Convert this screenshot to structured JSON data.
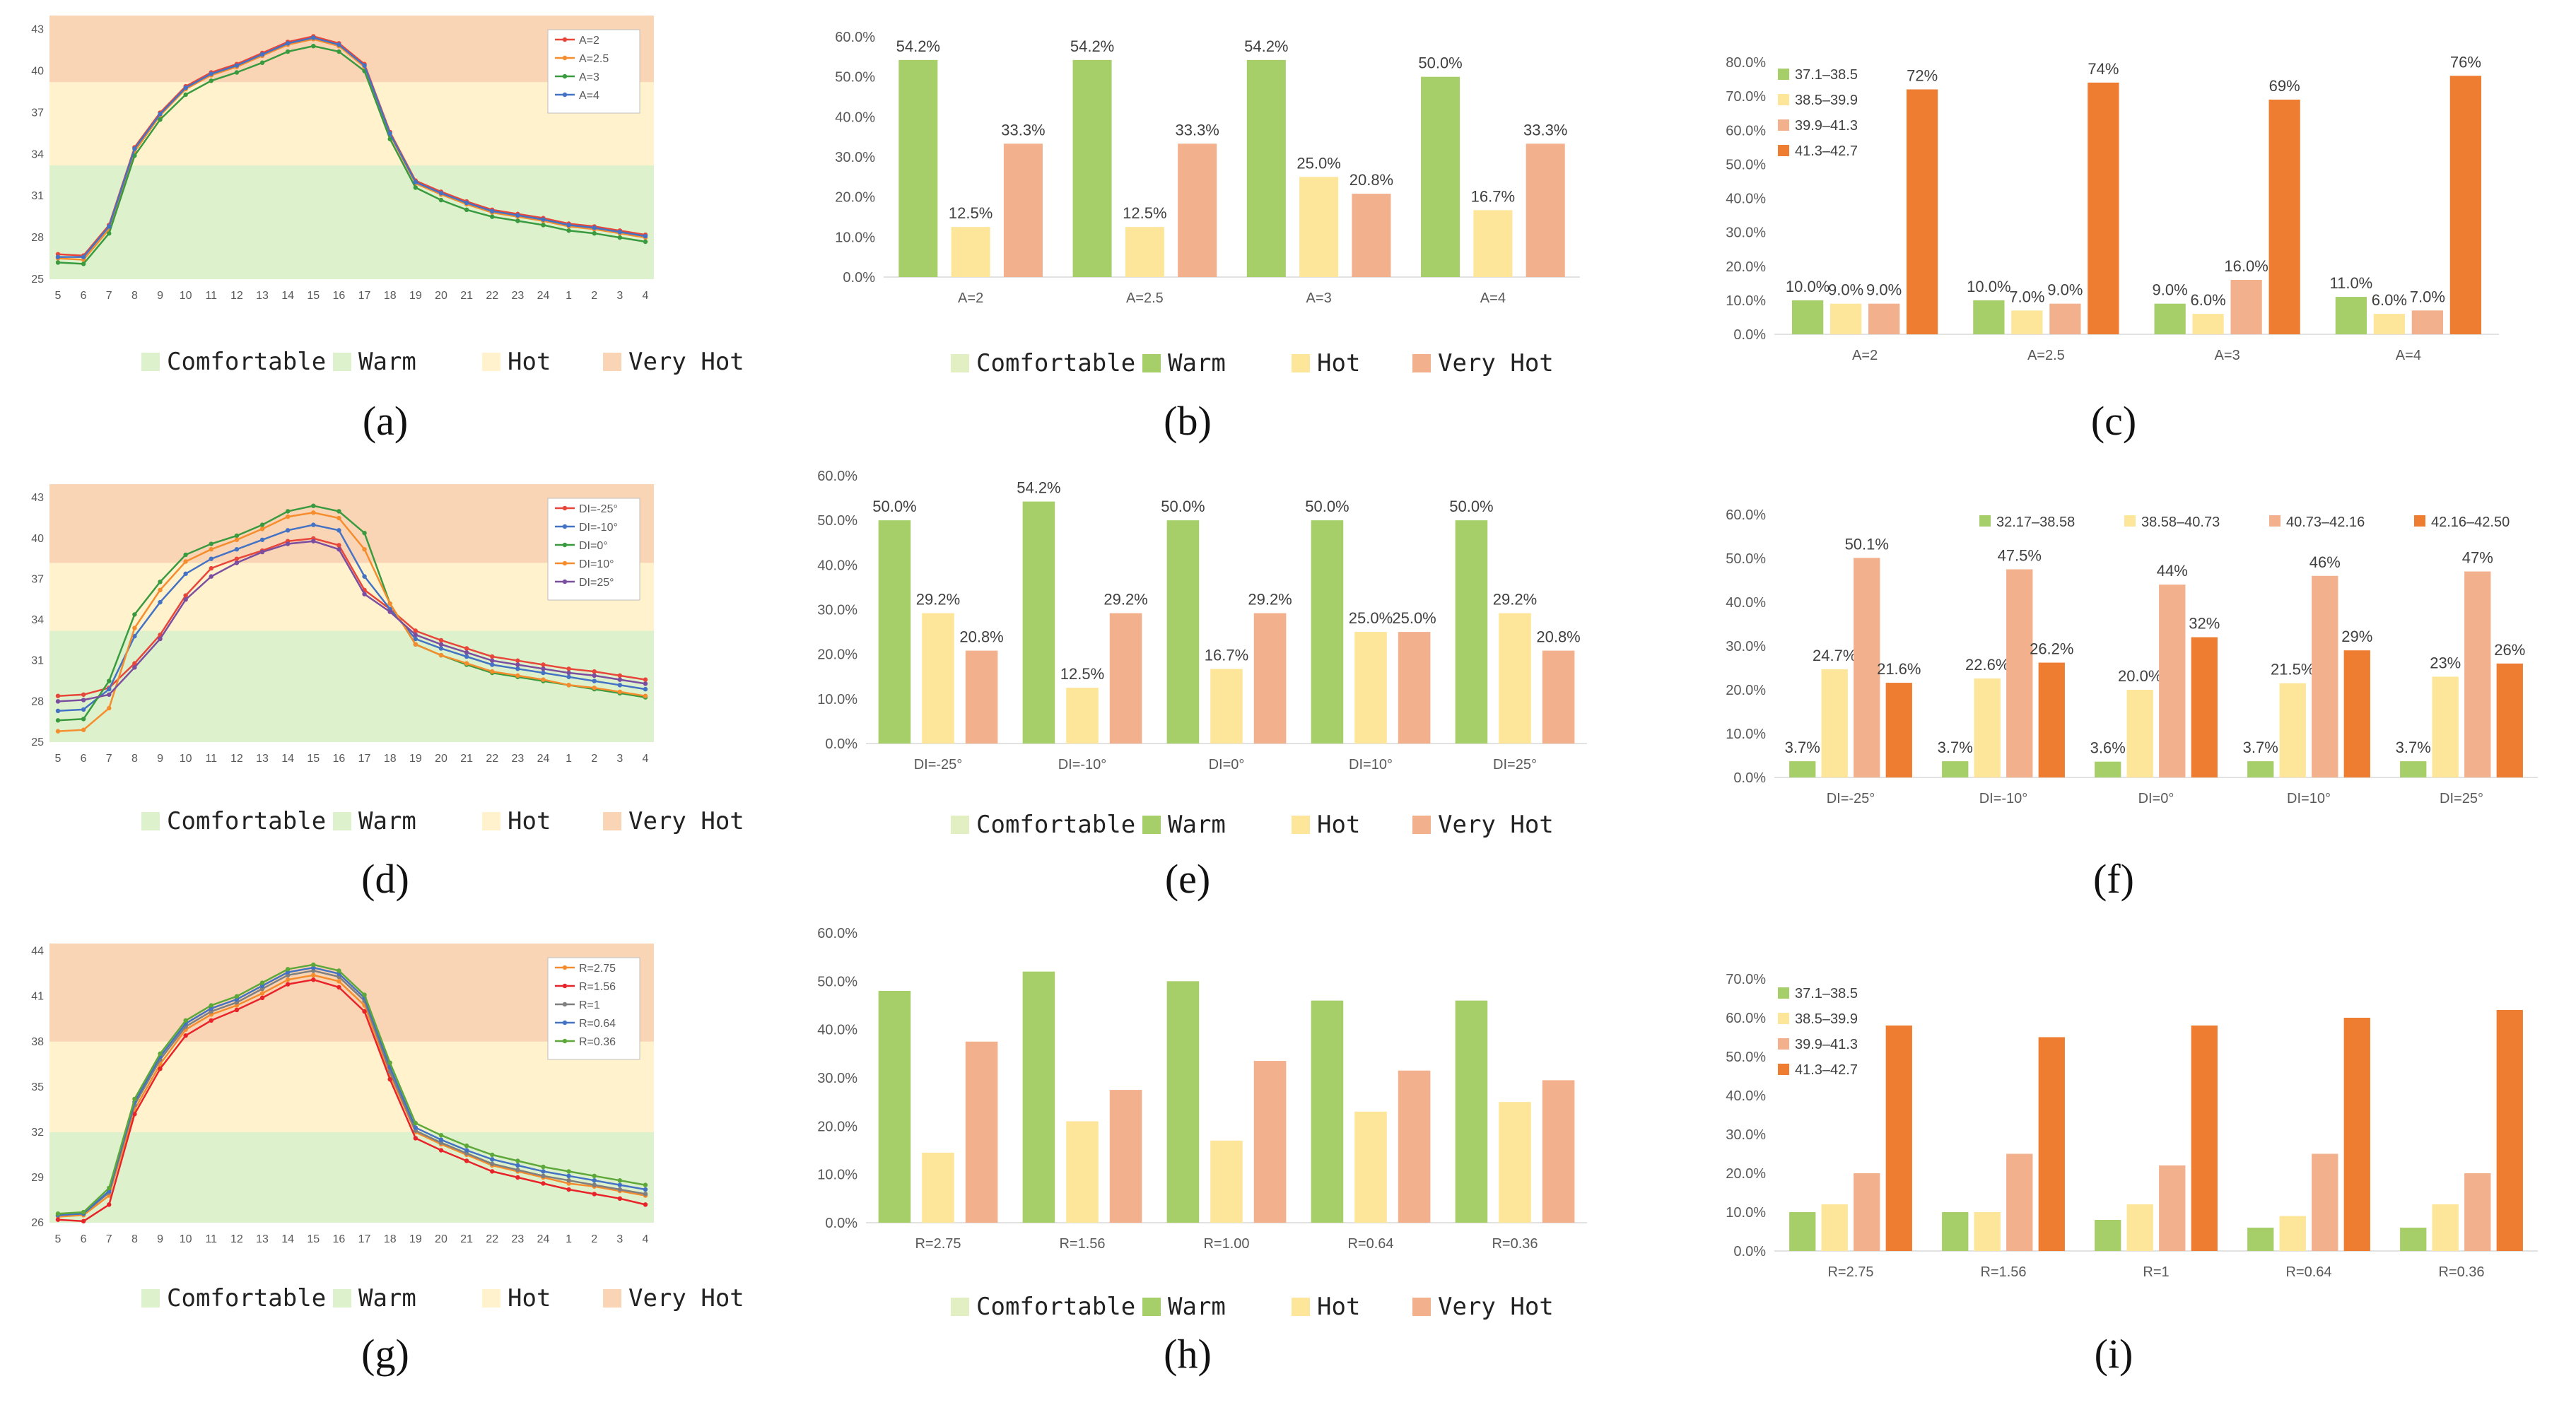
{
  "legend": [
    "Comfortable",
    "Warm",
    "Hot",
    "Very Hot"
  ],
  "colors": {
    "comfortable": "#e1efc2",
    "warm": "#a6cf69",
    "hot": "#fde69a",
    "very_hot": "#f3b08c",
    "bin4": "#ee7d31",
    "zone_comfortable": "#ddf2cc",
    "zone_warm": "#fff2cc",
    "zone_hot": "#fce4ca",
    "zone_very_hot": "#f9d5b6"
  },
  "chart_data": [
    {
      "id": "a",
      "type": "line",
      "caption": "(a)",
      "x": [
        "5",
        "6",
        "7",
        "8",
        "9",
        "10",
        "11",
        "12",
        "13",
        "14",
        "15",
        "16",
        "17",
        "18",
        "19",
        "20",
        "21",
        "22",
        "23",
        "24",
        "1",
        "2",
        "3",
        "4"
      ],
      "yticks": [
        "25",
        "28",
        "31",
        "34",
        "37",
        "40",
        "43"
      ],
      "ylim": [
        25,
        44
      ],
      "zones": [
        [
          25,
          33.2
        ],
        [
          33.2,
          39.2
        ],
        [
          39.2,
          44
        ]
      ],
      "series": [
        {
          "name": "A=2",
          "color": "#e8463a",
          "values": [
            26.8,
            26.7,
            28.9,
            34.5,
            37.0,
            38.9,
            39.9,
            40.5,
            41.3,
            42.1,
            42.5,
            42.0,
            40.5,
            35.6,
            32.1,
            31.3,
            30.6,
            30.0,
            29.7,
            29.4,
            29.0,
            28.8,
            28.5,
            28.2
          ]
        },
        {
          "name": "A=2.5",
          "color": "#f58d2f",
          "values": [
            26.5,
            26.4,
            28.6,
            34.2,
            36.8,
            38.7,
            39.7,
            40.3,
            41.1,
            41.9,
            42.3,
            41.8,
            40.3,
            35.4,
            31.9,
            31.1,
            30.4,
            29.8,
            29.5,
            29.2,
            28.8,
            28.6,
            28.3,
            28.0
          ]
        },
        {
          "name": "A=3",
          "color": "#3a9a3f",
          "values": [
            26.2,
            26.1,
            28.3,
            33.9,
            36.5,
            38.3,
            39.3,
            39.9,
            40.6,
            41.4,
            41.8,
            41.4,
            40.0,
            35.1,
            31.6,
            30.7,
            30.0,
            29.5,
            29.2,
            28.9,
            28.5,
            28.3,
            28.0,
            27.7
          ]
        },
        {
          "name": "A=4",
          "color": "#4472c4",
          "values": [
            26.6,
            26.6,
            28.8,
            34.4,
            36.9,
            38.8,
            39.8,
            40.4,
            41.2,
            42.0,
            42.4,
            41.9,
            40.4,
            35.5,
            32.0,
            31.2,
            30.5,
            29.9,
            29.6,
            29.3,
            28.9,
            28.7,
            28.4,
            28.1
          ]
        }
      ]
    },
    {
      "id": "b",
      "type": "bar",
      "caption": "(b)",
      "categories": [
        "A=2",
        "A=2.5",
        "A=3",
        "A=4"
      ],
      "yticks": [
        "0.0%",
        "10.0%",
        "20.0%",
        "30.0%",
        "40.0%",
        "50.0%",
        "60.0%"
      ],
      "ylim": [
        0,
        60
      ],
      "series": [
        {
          "name": "Warm",
          "values": [
            54.2,
            54.2,
            54.2,
            50.0
          ],
          "labels": [
            "54.2%",
            "54.2%",
            "54.2%",
            "50.0%"
          ]
        },
        {
          "name": "Hot",
          "values": [
            12.5,
            12.5,
            25.0,
            16.7
          ],
          "labels": [
            "12.5%",
            "12.5%",
            "25.0%",
            "16.7%"
          ]
        },
        {
          "name": "Very Hot",
          "values": [
            33.3,
            33.3,
            20.8,
            33.3
          ],
          "labels": [
            "33.3%",
            "33.3%",
            "20.8%",
            "33.3%"
          ]
        }
      ]
    },
    {
      "id": "c",
      "type": "bar",
      "caption": "(c)",
      "categories": [
        "A=2",
        "A=2.5",
        "A=3",
        "A=4"
      ],
      "yticks": [
        "0.0%",
        "10.0%",
        "20.0%",
        "30.0%",
        "40.0%",
        "50.0%",
        "60.0%",
        "70.0%",
        "80.0%"
      ],
      "ylim": [
        0,
        80
      ],
      "legend": [
        "37.1–38.5",
        "38.5–39.9",
        "39.9–41.3",
        "41.3–42.7"
      ],
      "series": [
        {
          "name": "37.1–38.5",
          "values": [
            10,
            10,
            9,
            11
          ],
          "labels": [
            "10.0%",
            "10.0%",
            "9.0%",
            "11.0%"
          ]
        },
        {
          "name": "38.5–39.9",
          "values": [
            9,
            7,
            6,
            6
          ],
          "labels": [
            "9.0%",
            "7.0%",
            "6.0%",
            "6.0%"
          ]
        },
        {
          "name": "39.9–41.3",
          "values": [
            9,
            9,
            16,
            7
          ],
          "labels": [
            "9.0%",
            "9.0%",
            "16.0%",
            "7.0%"
          ]
        },
        {
          "name": "41.3–42.7",
          "values": [
            72,
            74,
            69,
            76
          ],
          "labels": [
            "72%",
            "74%",
            "69%",
            "76%"
          ]
        }
      ]
    },
    {
      "id": "d",
      "type": "line",
      "caption": "(d)",
      "x": [
        "5",
        "6",
        "7",
        "8",
        "9",
        "10",
        "11",
        "12",
        "13",
        "14",
        "15",
        "16",
        "17",
        "18",
        "19",
        "20",
        "21",
        "22",
        "23",
        "24",
        "1",
        "2",
        "3",
        "4"
      ],
      "yticks": [
        "25",
        "28",
        "31",
        "34",
        "37",
        "40",
        "43"
      ],
      "ylim": [
        25,
        44
      ],
      "zones": [
        [
          25,
          33.2
        ],
        [
          33.2,
          38.2
        ],
        [
          38.2,
          44
        ]
      ],
      "series": [
        {
          "name": "DI=-25°",
          "color": "#e8463a",
          "values": [
            28.4,
            28.5,
            29.0,
            30.8,
            32.9,
            35.8,
            37.8,
            38.5,
            39.1,
            39.8,
            40.0,
            39.5,
            36.2,
            34.8,
            33.2,
            32.5,
            31.9,
            31.3,
            31.0,
            30.7,
            30.4,
            30.2,
            29.9,
            29.6
          ]
        },
        {
          "name": "DI=-10°",
          "color": "#4472c4",
          "values": [
            27.3,
            27.4,
            28.9,
            32.8,
            35.3,
            37.4,
            38.5,
            39.2,
            39.9,
            40.6,
            41.0,
            40.6,
            37.2,
            34.8,
            32.6,
            31.9,
            31.3,
            30.7,
            30.4,
            30.1,
            29.8,
            29.5,
            29.2,
            28.9
          ]
        },
        {
          "name": "DI=0°",
          "color": "#3a9a3f",
          "values": [
            26.6,
            26.7,
            29.5,
            34.4,
            36.8,
            38.8,
            39.6,
            40.2,
            41.0,
            42.0,
            42.4,
            42.0,
            40.4,
            35.2,
            32.2,
            31.4,
            30.7,
            30.1,
            29.8,
            29.5,
            29.2,
            28.9,
            28.6,
            28.3
          ]
        },
        {
          "name": "DI=10°",
          "color": "#f58d2f",
          "values": [
            25.8,
            25.9,
            27.5,
            33.4,
            36.2,
            38.3,
            39.2,
            39.9,
            40.7,
            41.6,
            41.9,
            41.5,
            39.2,
            35.2,
            32.2,
            31.4,
            30.8,
            30.2,
            29.9,
            29.6,
            29.2,
            29.0,
            28.7,
            28.4
          ]
        },
        {
          "name": "DI=25°",
          "color": "#7b4ea0",
          "values": [
            28.0,
            28.1,
            28.5,
            30.5,
            32.6,
            35.5,
            37.2,
            38.2,
            39.0,
            39.6,
            39.8,
            39.2,
            35.9,
            34.6,
            32.9,
            32.2,
            31.6,
            31.0,
            30.7,
            30.4,
            30.1,
            29.9,
            29.6,
            29.3
          ]
        }
      ]
    },
    {
      "id": "e",
      "type": "bar",
      "caption": "(e)",
      "categories": [
        "DI=-25°",
        "DI=-10°",
        "DI=0°",
        "DI=10°",
        "DI=25°"
      ],
      "yticks": [
        "0.0%",
        "10.0%",
        "20.0%",
        "30.0%",
        "40.0%",
        "50.0%",
        "60.0%"
      ],
      "ylim": [
        0,
        60
      ],
      "series": [
        {
          "name": "Warm",
          "values": [
            50.0,
            54.2,
            50.0,
            50.0,
            50.0
          ],
          "labels": [
            "50.0%",
            "54.2%",
            "50.0%",
            "50.0%",
            "50.0%"
          ]
        },
        {
          "name": "Hot",
          "values": [
            29.2,
            12.5,
            16.7,
            25.0,
            29.2
          ],
          "labels": [
            "29.2%",
            "12.5%",
            "16.7%",
            "25.0%",
            "29.2%"
          ]
        },
        {
          "name": "Very Hot",
          "values": [
            20.8,
            29.2,
            29.2,
            25.0,
            20.8
          ],
          "labels": [
            "20.8%",
            "29.2%",
            "29.2%",
            "25.0%",
            "20.8%"
          ]
        }
      ]
    },
    {
      "id": "f",
      "type": "bar",
      "caption": "(f)",
      "categories": [
        "DI=-25°",
        "DI=-10°",
        "DI=0°",
        "DI=10°",
        "DI=25°"
      ],
      "yticks": [
        "0.0%",
        "10.0%",
        "20.0%",
        "30.0%",
        "40.0%",
        "50.0%",
        "60.0%"
      ],
      "ylim": [
        0,
        60
      ],
      "legend": [
        "32.17–38.58",
        "38.58–40.73",
        "40.73–42.16",
        "42.16–42.50"
      ],
      "series": [
        {
          "name": "32.17–38.58",
          "values": [
            3.7,
            3.7,
            3.6,
            3.7,
            3.7
          ],
          "labels": [
            "3.7%",
            "3.7%",
            "3.6%",
            "3.7%",
            "3.7%"
          ]
        },
        {
          "name": "38.58–40.73",
          "values": [
            24.7,
            22.6,
            20.0,
            21.5,
            23.0
          ],
          "labels": [
            "24.7%",
            "22.6%",
            "20.0%",
            "21.5%",
            "23%"
          ]
        },
        {
          "name": "40.73–42.16",
          "values": [
            50.1,
            47.5,
            44.0,
            46.0,
            47.0
          ],
          "labels": [
            "50.1%",
            "47.5%",
            "44%",
            "46%",
            "47%"
          ]
        },
        {
          "name": "42.16–42.50",
          "values": [
            21.6,
            26.2,
            32.0,
            29.0,
            26.0
          ],
          "labels": [
            "21.6%",
            "26.2%",
            "32%",
            "29%",
            "26%"
          ]
        }
      ]
    },
    {
      "id": "g",
      "type": "line",
      "caption": "(g)",
      "x": [
        "5",
        "6",
        "7",
        "8",
        "9",
        "10",
        "11",
        "12",
        "13",
        "14",
        "15",
        "16",
        "17",
        "18",
        "19",
        "20",
        "21",
        "22",
        "23",
        "24",
        "1",
        "2",
        "3",
        "4"
      ],
      "yticks": [
        "26",
        "29",
        "32",
        "35",
        "38",
        "41",
        "44"
      ],
      "ylim": [
        26,
        44.5
      ],
      "zones": [
        [
          26,
          32
        ],
        [
          32,
          38
        ],
        [
          38,
          44.5
        ]
      ],
      "series": [
        {
          "name": "R=2.75",
          "color": "#f58d2f",
          "values": [
            26.4,
            26.5,
            27.8,
            33.5,
            36.5,
            38.8,
            39.8,
            40.4,
            41.2,
            42.1,
            42.4,
            42.0,
            40.4,
            35.8,
            32.0,
            31.2,
            30.5,
            29.8,
            29.4,
            29.0,
            28.6,
            28.4,
            28.1,
            27.8
          ]
        },
        {
          "name": "R=1.56",
          "color": "#e8242a",
          "values": [
            26.2,
            26.1,
            27.2,
            33.2,
            36.2,
            38.4,
            39.4,
            40.1,
            40.9,
            41.8,
            42.1,
            41.6,
            40.0,
            35.5,
            31.6,
            30.8,
            30.1,
            29.4,
            29.0,
            28.6,
            28.2,
            27.9,
            27.6,
            27.2
          ]
        },
        {
          "name": "R=1",
          "color": "#7f7f7f",
          "values": [
            26.5,
            26.6,
            28.0,
            33.8,
            36.8,
            39.0,
            40.0,
            40.6,
            41.5,
            42.4,
            42.7,
            42.3,
            40.7,
            36.0,
            32.1,
            31.3,
            30.6,
            29.9,
            29.5,
            29.1,
            28.8,
            28.5,
            28.2,
            27.9
          ]
        },
        {
          "name": "R=0.64",
          "color": "#4472c4",
          "values": [
            26.5,
            26.6,
            28.1,
            34.0,
            37.0,
            39.2,
            40.2,
            40.8,
            41.7,
            42.6,
            42.9,
            42.5,
            40.9,
            36.3,
            32.3,
            31.5,
            30.8,
            30.2,
            29.8,
            29.4,
            29.1,
            28.8,
            28.5,
            28.2
          ]
        },
        {
          "name": "R=0.36",
          "color": "#5ea83a",
          "values": [
            26.6,
            26.7,
            28.3,
            34.2,
            37.2,
            39.4,
            40.4,
            41.0,
            41.9,
            42.8,
            43.1,
            42.7,
            41.1,
            36.6,
            32.6,
            31.8,
            31.1,
            30.5,
            30.1,
            29.7,
            29.4,
            29.1,
            28.8,
            28.5
          ]
        }
      ]
    },
    {
      "id": "h",
      "type": "bar",
      "caption": "(h)",
      "categories": [
        "R=2.75",
        "R=1.56",
        "R=1.00",
        "R=0.64",
        "R=0.36"
      ],
      "yticks": [
        "0.0%",
        "10.0%",
        "20.0%",
        "30.0%",
        "40.0%",
        "50.0%",
        "60.0%"
      ],
      "ylim": [
        0,
        60
      ],
      "series": [
        {
          "name": "Warm",
          "values": [
            48,
            52,
            50,
            46,
            46
          ]
        },
        {
          "name": "Hot",
          "values": [
            14.5,
            21,
            17,
            23,
            25
          ]
        },
        {
          "name": "Very Hot",
          "values": [
            37.5,
            27.5,
            33.5,
            31.5,
            29.5
          ]
        }
      ]
    },
    {
      "id": "i",
      "type": "bar",
      "caption": "(i)",
      "categories": [
        "R=2.75",
        "R=1.56",
        "R=1",
        "R=0.64",
        "R=0.36"
      ],
      "yticks": [
        "0.0%",
        "10.0%",
        "20.0%",
        "30.0%",
        "40.0%",
        "50.0%",
        "60.0%",
        "70.0%"
      ],
      "ylim": [
        0,
        70
      ],
      "legend": [
        "37.1–38.5",
        "38.5–39.9",
        "39.9–41.3",
        "41.3–42.7"
      ],
      "series": [
        {
          "name": "37.1–38.5",
          "values": [
            10,
            10,
            8,
            6,
            6
          ]
        },
        {
          "name": "38.5–39.9",
          "values": [
            12,
            10,
            12,
            9,
            12
          ]
        },
        {
          "name": "39.9–41.3",
          "values": [
            20,
            25,
            22,
            25,
            20
          ]
        },
        {
          "name": "41.3–42.7",
          "values": [
            58,
            55,
            58,
            60,
            62
          ]
        }
      ]
    }
  ]
}
